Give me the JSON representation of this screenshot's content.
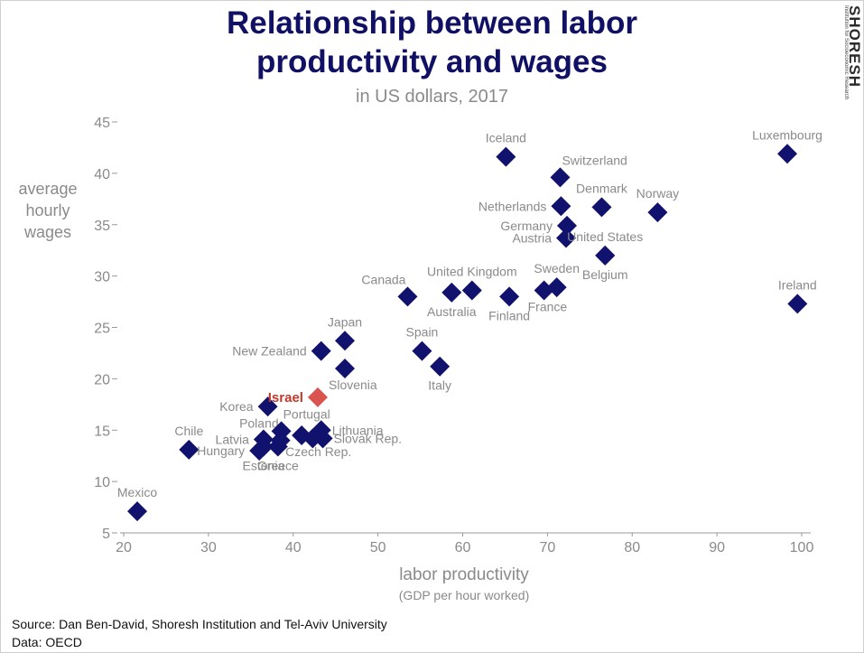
{
  "header": {
    "title_line1": "Relationship between labor",
    "title_line2": "productivity and wages",
    "subtitle": "in US dollars, 2017"
  },
  "axes": {
    "ylabel_line1": "average",
    "ylabel_line2": "hourly",
    "ylabel_line3": "wages",
    "xlabel": "labor productivity",
    "xlabel_sub": "(GDP per hour worked)"
  },
  "footer": {
    "source": "Source: Dan Ben-David, Shoresh Institution and Tel-Aviv University",
    "data": "Data: OECD"
  },
  "logo": {
    "name": "SHORESH",
    "tagline": "Institution for Socioeconomic Research"
  },
  "colors": {
    "title": "#101065",
    "marker": "#11116e",
    "highlight": "#d9534f",
    "label": "#8a8a8a",
    "highlight_label": "#c0392b"
  },
  "chart_data": {
    "type": "scatter",
    "title": "Relationship between labor productivity and wages",
    "subtitle": "in US dollars, 2017",
    "xlabel": "labor productivity",
    "ylabel": "average hourly wages",
    "xlim": [
      20,
      100
    ],
    "ylim": [
      5,
      45
    ],
    "xticks": [
      20,
      30,
      40,
      50,
      60,
      70,
      80,
      90,
      100
    ],
    "yticks": [
      5,
      10,
      15,
      20,
      25,
      30,
      35,
      40,
      45
    ],
    "grid": false,
    "points": [
      {
        "label": "Mexico",
        "x": 21.6,
        "y": 7.1,
        "pos": "above"
      },
      {
        "label": "Chile",
        "x": 27.7,
        "y": 13.1,
        "pos": "above"
      },
      {
        "label": "Hungary",
        "x": 36.0,
        "y": 13.0,
        "pos": "left"
      },
      {
        "label": "Estonia",
        "x": 36.5,
        "y": 13.4,
        "pos": "below"
      },
      {
        "label": "Greece",
        "x": 38.2,
        "y": 13.4,
        "pos": "below"
      },
      {
        "label": "Latvia",
        "x": 36.5,
        "y": 14.1,
        "pos": "left"
      },
      {
        "label": "Poland",
        "x": 38.5,
        "y": 14.0,
        "pos": "above-left"
      },
      {
        "label": "Portugal",
        "x": 38.6,
        "y": 14.9,
        "pos": "above-right"
      },
      {
        "label": "Korea",
        "x": 37.0,
        "y": 17.3,
        "pos": "left"
      },
      {
        "label": "Czech Rep.",
        "x": 41.0,
        "y": 14.5,
        "pos": "below-right"
      },
      {
        "label": "",
        "x": 42.3,
        "y": 14.2,
        "pos": "none"
      },
      {
        "label": "Lithuania",
        "x": 43.3,
        "y": 15.0,
        "pos": "right"
      },
      {
        "label": "Slovak Rep.",
        "x": 43.5,
        "y": 14.2,
        "pos": "right"
      },
      {
        "label": "Israel",
        "x": 42.9,
        "y": 18.2,
        "pos": "left",
        "highlight": true
      },
      {
        "label": "Slovenia",
        "x": 46.1,
        "y": 21.0,
        "pos": "below-right"
      },
      {
        "label": "New Zealand",
        "x": 43.3,
        "y": 22.7,
        "pos": "left"
      },
      {
        "label": "Japan",
        "x": 46.1,
        "y": 23.7,
        "pos": "above"
      },
      {
        "label": "Spain",
        "x": 55.2,
        "y": 22.7,
        "pos": "above"
      },
      {
        "label": "Italy",
        "x": 57.3,
        "y": 21.2,
        "pos": "below"
      },
      {
        "label": "Canada",
        "x": 53.5,
        "y": 28.0,
        "pos": "above-left"
      },
      {
        "label": "Australia",
        "x": 58.7,
        "y": 28.4,
        "pos": "below"
      },
      {
        "label": "United Kingdom",
        "x": 61.1,
        "y": 28.6,
        "pos": "above"
      },
      {
        "label": "Finland",
        "x": 65.5,
        "y": 28.0,
        "pos": "below"
      },
      {
        "label": "France",
        "x": 69.6,
        "y": 28.6,
        "pos": "below-right"
      },
      {
        "label": "Sweden",
        "x": 71.1,
        "y": 28.9,
        "pos": "above"
      },
      {
        "label": "Iceland",
        "x": 65.1,
        "y": 41.6,
        "pos": "above"
      },
      {
        "label": "Switzerland",
        "x": 71.5,
        "y": 39.6,
        "pos": "above-right"
      },
      {
        "label": "Netherlands",
        "x": 71.6,
        "y": 36.8,
        "pos": "left"
      },
      {
        "label": "Germany",
        "x": 72.3,
        "y": 34.9,
        "pos": "left"
      },
      {
        "label": "Austria",
        "x": 72.2,
        "y": 33.7,
        "pos": "left"
      },
      {
        "label": "Denmark",
        "x": 76.4,
        "y": 36.7,
        "pos": "above"
      },
      {
        "label": "United States",
        "x": 76.8,
        "y": 32.0,
        "pos": "above"
      },
      {
        "label": "Belgium",
        "x": 76.8,
        "y": 32.0,
        "pos": "below"
      },
      {
        "label": "Norway",
        "x": 83.0,
        "y": 36.2,
        "pos": "above"
      },
      {
        "label": "Luxembourg",
        "x": 98.3,
        "y": 41.9,
        "pos": "above"
      },
      {
        "label": "Ireland",
        "x": 99.5,
        "y": 27.3,
        "pos": "above"
      }
    ]
  }
}
